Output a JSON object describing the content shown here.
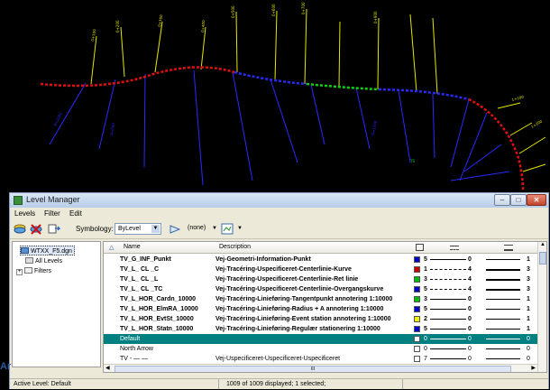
{
  "window": {
    "title": "Level Manager",
    "min": "–",
    "max": "□",
    "close": "✕"
  },
  "menu": {
    "levels": "Levels",
    "filter": "Filter",
    "edit": "Edit"
  },
  "toolbar": {
    "symbology_label": "Symbology:",
    "symbology_value": "ByLevel",
    "override_value": "(none)"
  },
  "tree": {
    "file": "WTXX_F5.dgn",
    "all_levels": "All Levels",
    "filters": "Filters"
  },
  "grid": {
    "columns": {
      "sort_icon": "sort-up-icon",
      "name": "Name",
      "description": "Description",
      "color": "color-column-icon",
      "style": "style-column-icon",
      "weight": "weight-column-icon"
    },
    "rows": [
      {
        "name": "TV_G_INF_Punkt",
        "description": "Vej-Geometri-Information-Punkt",
        "color": "#0000cc",
        "color_num": "5",
        "style_num": "0",
        "weight_num": "1",
        "bold": true
      },
      {
        "name": "TV_L_ CL _C",
        "description": "Vej-Tracéring-Uspecificeret-Centerlinie-Kurve",
        "color": "#cc0000",
        "color_num": "1",
        "style_num": "4",
        "weight_num": "3",
        "bold": true
      },
      {
        "name": "TV_L_ CL _L",
        "description": "Vej-Tracéring-Uspecificeret-Centerlinie-Ret linie",
        "color": "#00bb00",
        "color_num": "3",
        "style_num": "4",
        "weight_num": "3",
        "bold": true
      },
      {
        "name": "TV_L_ CL _TC",
        "description": "Vej-Tracéring-Uspecificeret-Centerlinie-Overgangskurve",
        "color": "#0000cc",
        "color_num": "5",
        "style_num": "4",
        "weight_num": "3",
        "bold": true
      },
      {
        "name": "TV_L_HOR_Cardn_10000",
        "description": "Vej-Tracéring-Linieføring-Tangentpunkt annotering 1:10000",
        "color": "#00bb00",
        "color_num": "3",
        "style_num": "0",
        "weight_num": "1",
        "bold": true
      },
      {
        "name": "TV_L_HOR_ElmRA_10000",
        "description": "Vej-Tracéring-Linieføring-Radius + A annotering 1:10000",
        "color": "#0000cc",
        "color_num": "5",
        "style_num": "0",
        "weight_num": "1",
        "bold": true
      },
      {
        "name": "TV_L_HOR_EvtSt_10000",
        "description": "Vej-Tracéring-Linieføring-Event station annotering 1:10000",
        "color": "#eeee00",
        "color_num": "2",
        "style_num": "0",
        "weight_num": "1",
        "bold": true
      },
      {
        "name": "TV_L_HOR_Statn_10000",
        "description": "Vej-Tracéring-Linieføring-Regulær stationering 1:10000",
        "color": "#0000cc",
        "color_num": "5",
        "style_num": "0",
        "weight_num": "1",
        "bold": true
      },
      {
        "name": "Default",
        "description": "",
        "color": "#ffffff",
        "color_num": "0",
        "style_num": "0",
        "weight_num": "0",
        "selected": true
      },
      {
        "name": "North Arrow",
        "description": "",
        "color": "#ffffff",
        "color_num": "0",
        "style_num": "0",
        "weight_num": "0"
      },
      {
        "name": "TV - — —",
        "description": "Vej-Uspecificeret-Uspecificeret-Uspecificeret",
        "color": "#ffffff",
        "color_num": "7",
        "style_num": "0",
        "weight_num": "0"
      }
    ],
    "h_scroll_grip": "III"
  },
  "status": {
    "active_level": "Active Level: Default",
    "count": "1009 of 1009 displayed; 1 selected;"
  },
  "edge_text": "Ar"
}
